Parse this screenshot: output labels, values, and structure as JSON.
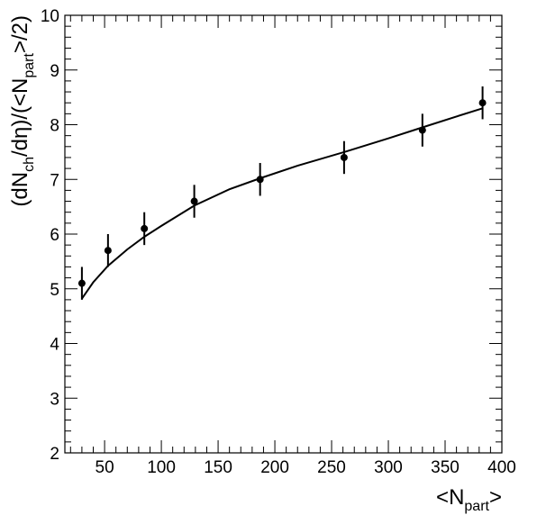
{
  "chart_data": {
    "type": "scatter",
    "x_label": "<N",
    "x_label_sub": "part",
    "x_label_end": ">",
    "y_label_parts": [
      "(dN",
      "ch",
      "/dη)/(<N",
      "part",
      ">/2)"
    ],
    "xlim": [
      15,
      400
    ],
    "ylim": [
      2,
      10
    ],
    "x_ticks": [
      50,
      100,
      150,
      200,
      250,
      300,
      350,
      400
    ],
    "y_ticks": [
      2,
      3,
      4,
      5,
      6,
      7,
      8,
      9,
      10
    ],
    "grid": false,
    "series": [
      {
        "kind": "points-with-error-bars",
        "points": [
          {
            "x": 30,
            "y": 5.1,
            "err": 0.3
          },
          {
            "x": 53,
            "y": 5.7,
            "err": 0.3
          },
          {
            "x": 85,
            "y": 6.1,
            "err": 0.3
          },
          {
            "x": 129,
            "y": 6.6,
            "err": 0.3
          },
          {
            "x": 187,
            "y": 7.0,
            "err": 0.3
          },
          {
            "x": 261,
            "y": 7.4,
            "err": 0.3
          },
          {
            "x": 330,
            "y": 7.9,
            "err": 0.3
          },
          {
            "x": 383,
            "y": 8.4,
            "err": 0.3
          }
        ]
      },
      {
        "kind": "curve",
        "points": [
          {
            "x": 30,
            "y": 4.82
          },
          {
            "x": 40,
            "y": 5.12
          },
          {
            "x": 53,
            "y": 5.42
          },
          {
            "x": 70,
            "y": 5.72
          },
          {
            "x": 85,
            "y": 5.95
          },
          {
            "x": 100,
            "y": 6.15
          },
          {
            "x": 129,
            "y": 6.52
          },
          {
            "x": 160,
            "y": 6.82
          },
          {
            "x": 187,
            "y": 7.02
          },
          {
            "x": 220,
            "y": 7.25
          },
          {
            "x": 261,
            "y": 7.5
          },
          {
            "x": 300,
            "y": 7.75
          },
          {
            "x": 330,
            "y": 7.95
          },
          {
            "x": 360,
            "y": 8.15
          },
          {
            "x": 383,
            "y": 8.3
          }
        ]
      }
    ]
  }
}
